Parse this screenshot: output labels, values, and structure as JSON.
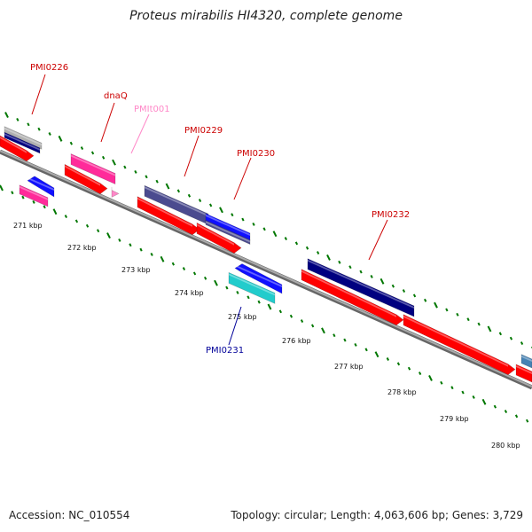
{
  "title": "Proteus mirabilis HI4320, complete genome",
  "footer": {
    "accession": "Accession: NC_010554",
    "summary": "Topology: circular; Length: 4,063,606 bp; Genes: 3,729"
  },
  "colors": {
    "forward_cds": "#ff0000",
    "navy": "#000080",
    "blue": "#1010ff",
    "slate": "#4b4b8f",
    "magenta": "#ff2b9a",
    "pink_label": "#ff88c8",
    "cyan": "#22cccc",
    "steelblue": "#4682b4",
    "gray_feature": "#b0b0b0",
    "tick": "#007700",
    "backbone": "#888888",
    "label_red": "#cc0000",
    "label_blue": "#000099"
  },
  "diagram": {
    "tick_labels": [
      "271 kbp",
      "272 kbp",
      "273 kbp",
      "274 kbp",
      "275 kbp",
      "276 kbp",
      "277 kbp",
      "278 kbp",
      "279 kbp",
      "280 kbp"
    ],
    "gene_labels": [
      {
        "id": "pmi0226",
        "text": "PMI0226",
        "color": "#cc0000"
      },
      {
        "id": "dnaq",
        "text": "dnaQ",
        "color": "#cc0000"
      },
      {
        "id": "pmit001",
        "text": "PMIt001",
        "color": "#ff88c8"
      },
      {
        "id": "pmi0229",
        "text": "PMI0229",
        "color": "#cc0000"
      },
      {
        "id": "pmi0230",
        "text": "PMI0230",
        "color": "#cc0000"
      },
      {
        "id": "pmi0232",
        "text": "PMI0232",
        "color": "#cc0000"
      },
      {
        "id": "pmi0231",
        "text": "PMI0231",
        "color": "#000099"
      }
    ]
  }
}
